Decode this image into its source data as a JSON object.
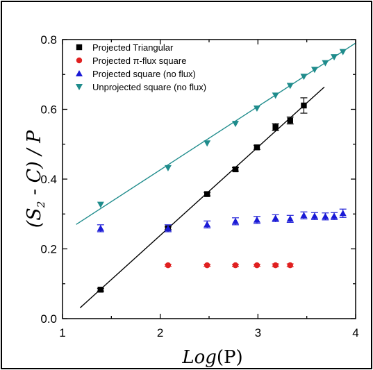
{
  "chart_data": {
    "type": "scatter",
    "xlabel": "Log(P)",
    "ylabel": "(S2 - C) / P",
    "ylabel_parts": {
      "open": "(",
      "s": "S",
      "sub": "2",
      "mid": " - C) / P"
    },
    "xlabel_parts": {
      "log": "Log",
      "paren": "(P)"
    },
    "xlim": [
      1,
      4
    ],
    "ylim": [
      0.0,
      0.8
    ],
    "xticks": [
      "1",
      "2",
      "3",
      "4"
    ],
    "yticks": [
      "0.0",
      "0.2",
      "0.4",
      "0.6",
      "0.8"
    ],
    "legend_placement": "top-left",
    "series": [
      {
        "name": "Projected Triangular",
        "color": "#000000",
        "marker": "square",
        "x": [
          1.39,
          2.08,
          2.48,
          2.77,
          2.99,
          3.18,
          3.33,
          3.47
        ],
        "y": [
          0.083,
          0.259,
          0.357,
          0.428,
          0.491,
          0.549,
          0.568,
          0.611
        ],
        "err": [
          0.004,
          0.004,
          0.005,
          0.005,
          0.006,
          0.01,
          0.01,
          0.022
        ]
      },
      {
        "name": "Projected π-flux square",
        "color": "#e02020",
        "marker": "circle",
        "x": [
          2.08,
          2.48,
          2.77,
          2.99,
          3.18,
          3.33
        ],
        "y": [
          0.153,
          0.153,
          0.153,
          0.153,
          0.153,
          0.153
        ],
        "err": [
          0.003,
          0.003,
          0.003,
          0.003,
          0.004,
          0.004
        ]
      },
      {
        "name": "Projected square (no flux)",
        "color": "#1a1ad6",
        "marker": "triangle-up",
        "x": [
          1.39,
          2.08,
          2.48,
          2.77,
          2.99,
          3.18,
          3.33,
          3.47,
          3.58,
          3.69,
          3.78,
          3.87
        ],
        "y": [
          0.259,
          0.259,
          0.27,
          0.279,
          0.283,
          0.288,
          0.286,
          0.296,
          0.294,
          0.293,
          0.294,
          0.302
        ],
        "err": [
          0.01,
          0.01,
          0.01,
          0.01,
          0.01,
          0.01,
          0.01,
          0.01,
          0.01,
          0.01,
          0.01,
          0.012
        ]
      },
      {
        "name": "Unprojected square (no flux)",
        "color": "#1f8c8c",
        "marker": "triangle-down",
        "x": [
          1.39,
          2.08,
          2.48,
          2.77,
          2.99,
          3.18,
          3.33,
          3.47,
          3.58,
          3.69,
          3.78,
          3.87
        ],
        "y": [
          0.327,
          0.432,
          0.503,
          0.559,
          0.603,
          0.64,
          0.668,
          0.694,
          0.714,
          0.733,
          0.75,
          0.765
        ],
        "err": []
      }
    ],
    "fit_lines": [
      {
        "color": "#000000",
        "x": [
          1.18,
          3.68
        ],
        "y": [
          0.031,
          0.664
        ]
      },
      {
        "color": "#1f8c8c",
        "x": [
          1.14,
          4.0
        ],
        "y": [
          0.27,
          0.79
        ]
      }
    ]
  }
}
